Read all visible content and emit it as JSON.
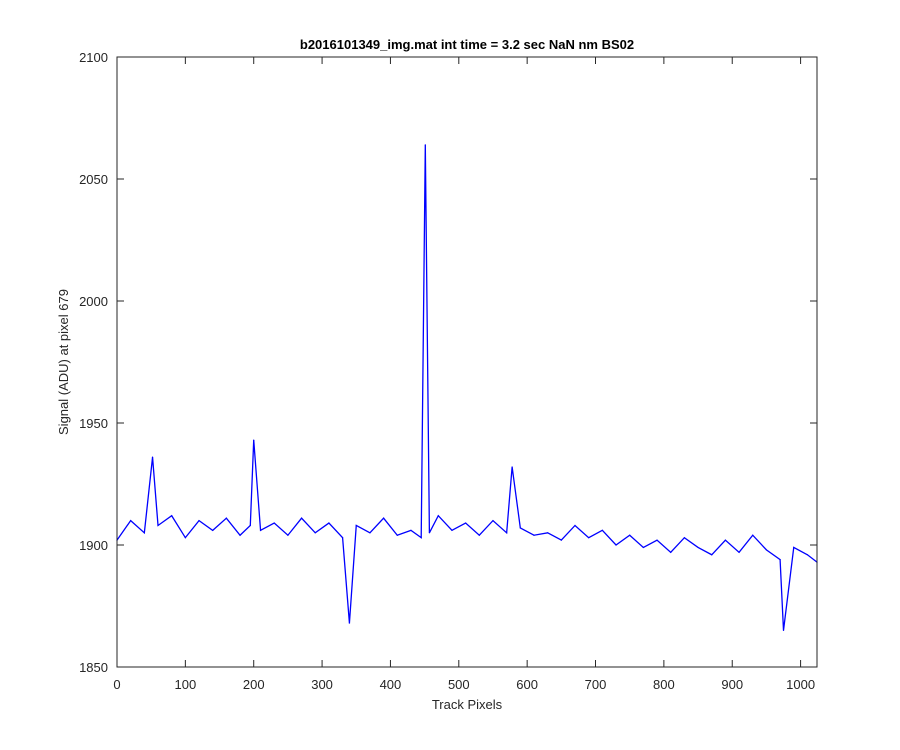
{
  "chart_data": {
    "type": "line",
    "title": "b2016101349_img.mat int time = 3.2 sec  NaN nm BS02",
    "xlabel": "Track Pixels",
    "ylabel": "Signal (ADU) at pixel 679",
    "xlim": [
      0,
      1024
    ],
    "ylim": [
      1850,
      2100
    ],
    "xticks": [
      0,
      100,
      200,
      300,
      400,
      500,
      600,
      700,
      800,
      900,
      1000
    ],
    "yticks": [
      1850,
      1900,
      1950,
      2000,
      2050,
      2100
    ],
    "grid": false,
    "line_color": "#0000ff",
    "series": [
      {
        "x": [
          0,
          20,
          40,
          52,
          60,
          80,
          100,
          120,
          140,
          160,
          180,
          195,
          200,
          210,
          230,
          250,
          270,
          290,
          310,
          330,
          340,
          350,
          370,
          390,
          410,
          430,
          445,
          451,
          457,
          470,
          490,
          510,
          530,
          550,
          570,
          578,
          590,
          610,
          630,
          650,
          670,
          690,
          710,
          730,
          750,
          770,
          790,
          810,
          830,
          850,
          870,
          890,
          910,
          930,
          950,
          970,
          975,
          990,
          1010,
          1024
        ],
        "values": [
          1902,
          1910,
          1905,
          1936,
          1908,
          1912,
          1903,
          1910,
          1906,
          1911,
          1904,
          1908,
          1943,
          1906,
          1909,
          1904,
          1911,
          1905,
          1909,
          1903,
          1868,
          1908,
          1905,
          1911,
          1904,
          1906,
          1903,
          2064,
          1905,
          1912,
          1906,
          1909,
          1904,
          1910,
          1905,
          1932,
          1907,
          1904,
          1905,
          1902,
          1908,
          1903,
          1906,
          1900,
          1904,
          1899,
          1902,
          1897,
          1903,
          1899,
          1896,
          1902,
          1897,
          1904,
          1898,
          1894,
          1865,
          1899,
          1896,
          1893
        ]
      }
    ]
  }
}
